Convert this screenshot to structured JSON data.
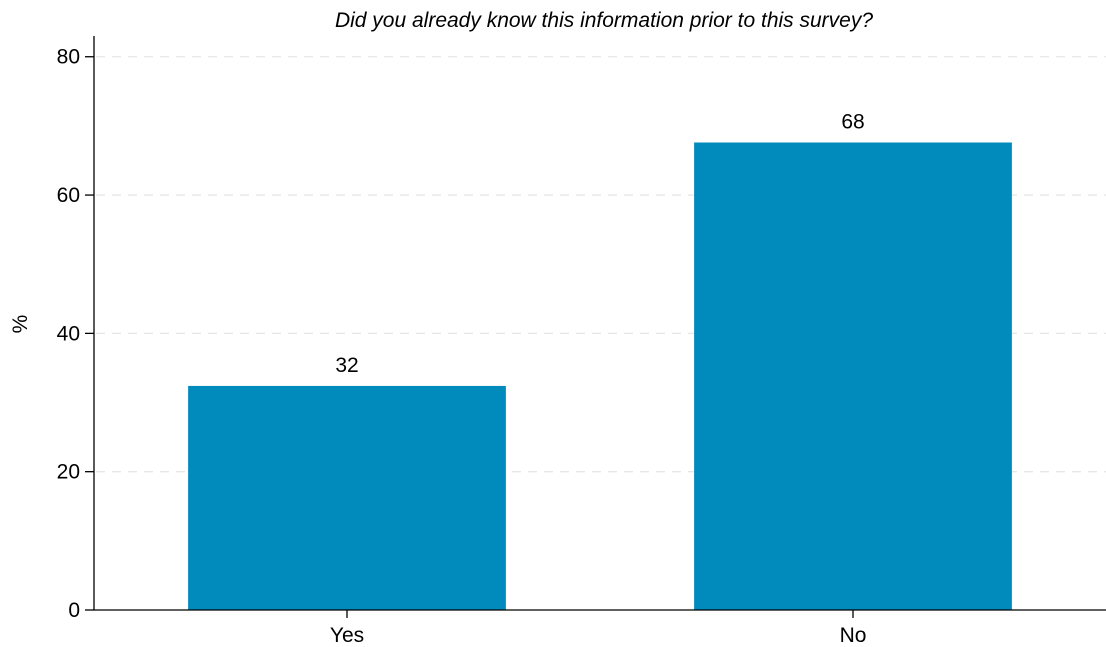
{
  "chart_data": {
    "type": "bar",
    "title": "Did you already know this information prior to this survey?",
    "xlabel": "",
    "ylabel": "%",
    "categories": [
      "Yes",
      "No"
    ],
    "values": [
      32.4,
      67.6
    ],
    "data_labels": [
      "32",
      "68"
    ],
    "ylim": [
      0,
      83
    ],
    "yticks": [
      0,
      20,
      40,
      60,
      80
    ],
    "grid": true,
    "legend": "none",
    "bar_color": "#008bbc"
  }
}
